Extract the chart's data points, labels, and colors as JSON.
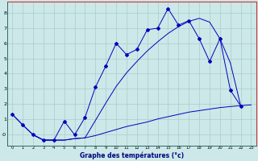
{
  "xlabel": "Graphe des températures (°c)",
  "background_color": "#cce8e8",
  "grid_color": "#aacccc",
  "line_color": "#0000bb",
  "x_ticks": [
    0,
    1,
    2,
    3,
    4,
    5,
    6,
    7,
    8,
    9,
    10,
    11,
    12,
    13,
    14,
    15,
    16,
    17,
    18,
    19,
    20,
    21,
    22,
    23
  ],
  "y_ticks": [
    0,
    1,
    2,
    3,
    4,
    5,
    6,
    7,
    8
  ],
  "y_labels": [
    "-0",
    "1",
    "2",
    "3",
    "4",
    "5",
    "6",
    "7",
    "8"
  ],
  "xlim": [
    -0.5,
    23.5
  ],
  "ylim": [
    -0.75,
    8.75
  ],
  "line1_x": [
    0,
    1,
    2,
    3,
    4,
    5,
    6,
    7,
    8,
    9,
    10,
    11,
    12,
    13,
    14,
    15,
    16,
    17,
    18,
    19,
    20,
    21,
    22
  ],
  "line1_y": [
    1.3,
    0.6,
    -0.05,
    -0.4,
    -0.4,
    0.85,
    -0.05,
    1.1,
    3.1,
    4.5,
    6.0,
    5.25,
    5.6,
    6.9,
    7.0,
    8.3,
    7.2,
    7.5,
    6.3,
    4.8,
    6.3,
    2.9,
    1.85
  ],
  "line2_x": [
    0,
    1,
    2,
    3,
    4,
    5,
    6,
    7,
    8,
    9,
    10,
    11,
    12,
    13,
    14,
    15,
    16,
    17,
    18,
    19,
    20,
    21,
    22,
    23
  ],
  "line2_y": [
    1.3,
    0.6,
    -0.05,
    -0.4,
    -0.4,
    -0.4,
    -0.3,
    -0.25,
    -0.1,
    0.1,
    0.3,
    0.5,
    0.65,
    0.8,
    1.0,
    1.15,
    1.3,
    1.45,
    1.55,
    1.65,
    1.75,
    1.82,
    1.88,
    1.93
  ],
  "line3_x": [
    2,
    3,
    4,
    5,
    6,
    7,
    8,
    9,
    10,
    11,
    12,
    13,
    14,
    15,
    16,
    17,
    18,
    19,
    20,
    21,
    22
  ],
  "line3_y": [
    -0.05,
    -0.4,
    -0.4,
    -0.4,
    -0.3,
    -0.25,
    0.9,
    2.05,
    3.15,
    4.05,
    4.8,
    5.5,
    6.1,
    6.65,
    7.1,
    7.45,
    7.65,
    7.4,
    6.3,
    4.7,
    1.85
  ]
}
